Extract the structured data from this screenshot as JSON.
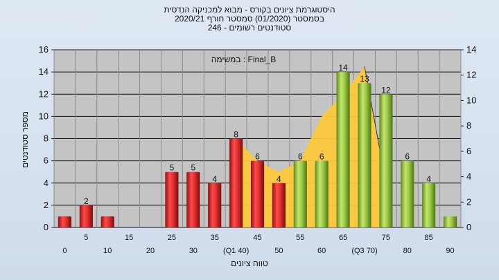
{
  "chart_data": {
    "type": "bar",
    "title_lines": [
      "היסטוגרמת ציונים בקורס - מבוא למכניקה הנדסית",
      "בסמסטר  (01/2020)  סמסטר חורף  2020/21",
      "סטודנטים רשומים - 246"
    ],
    "annotation": "במשימה : Final_B",
    "ylabel": "מספר סטודנטים",
    "xlabel": "טווח ציונים",
    "ylim_left": [
      0,
      16
    ],
    "yticks_left": [
      "0",
      "2",
      "4",
      "6",
      "8",
      "10",
      "12",
      "14",
      "16"
    ],
    "ylim_right": [
      0,
      14
    ],
    "yticks_right": [
      "0",
      "2",
      "4",
      "6",
      "8",
      "10",
      "12",
      "14"
    ],
    "grid": true,
    "categories": [
      "0",
      "5",
      "10",
      "15",
      "20",
      "25",
      "30",
      "35",
      "40",
      "45",
      "50",
      "55",
      "60",
      "65",
      "70",
      "75",
      "80",
      "85",
      "90"
    ],
    "category_labels": [
      "0",
      "5",
      "10",
      "15",
      "20",
      "25",
      "30",
      "35",
      "(Q1 40)",
      "45",
      "50",
      "55",
      "60",
      "65",
      "(Q3 70)",
      "75",
      "80",
      "85",
      "90"
    ],
    "values": [
      1,
      2,
      1,
      0,
      0,
      5,
      5,
      4,
      8,
      6,
      4,
      6,
      6,
      14,
      13,
      12,
      6,
      4,
      1
    ],
    "value_labels": [
      "",
      "2",
      "",
      "",
      "",
      "5",
      "5",
      "4",
      "8",
      "6",
      "4",
      "6",
      "6",
      "14",
      "13",
      "12",
      "6",
      "4",
      ""
    ],
    "bar_colors": [
      "red",
      "red",
      "red",
      "red",
      "red",
      "red",
      "red",
      "red",
      "red",
      "red",
      "red",
      "green",
      "green",
      "green",
      "green",
      "green",
      "green",
      "green",
      "green"
    ],
    "cumulative_area": {
      "x": [
        40,
        45,
        50,
        55,
        60,
        65,
        70,
        75
      ],
      "y": [
        8,
        6,
        5,
        6,
        10,
        12,
        14.5,
        4
      ]
    },
    "colors": {
      "red_bar": "#d42a2a",
      "green_bar": "#8dbd3c",
      "area": "#fcc93c",
      "plot_bg": "#c4c4c4"
    }
  }
}
